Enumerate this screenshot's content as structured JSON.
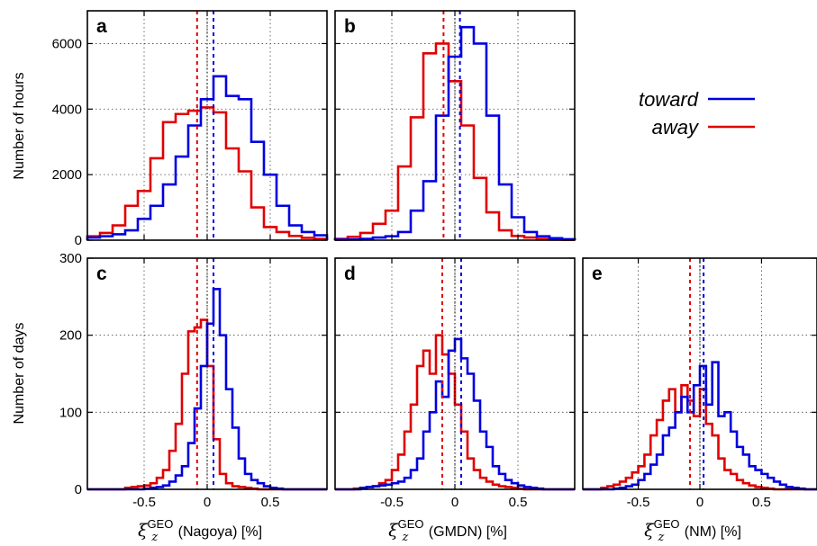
{
  "legend": {
    "toward_label": "toward",
    "away_label": "away",
    "toward_color": "#0000e0",
    "away_color": "#e00000"
  },
  "ylabels": {
    "top": "Number of hours",
    "bottom": "Number of days"
  },
  "xlabel_symbol": "ξ",
  "xlabel_superscript": "GEO",
  "xlabel_subscript": "z",
  "chart_data": [
    {
      "type": "bar",
      "panel": "a",
      "bin_edges": [
        -0.95,
        -0.85,
        -0.75,
        -0.65,
        -0.55,
        -0.45,
        -0.35,
        -0.25,
        -0.15,
        -0.05,
        0.05,
        0.15,
        0.25,
        0.35,
        0.45,
        0.55,
        0.65,
        0.75,
        0.85,
        0.95
      ],
      "series": [
        {
          "name": "toward",
          "values": [
            80,
            120,
            180,
            300,
            650,
            1050,
            1700,
            2550,
            3500,
            4300,
            5000,
            4400,
            4300,
            3000,
            2000,
            1050,
            450,
            250,
            150
          ]
        },
        {
          "name": "away",
          "values": [
            120,
            220,
            450,
            1050,
            1500,
            2500,
            3600,
            3850,
            3950,
            4050,
            3900,
            2800,
            2100,
            1000,
            400,
            250,
            130,
            70,
            40
          ]
        }
      ],
      "means": {
        "toward": 0.05,
        "away": -0.08
      },
      "ylim": [
        0,
        7000
      ],
      "yticks": [
        0,
        2000,
        4000,
        6000
      ],
      "xlim": [
        -0.95,
        0.95
      ],
      "xticks": [
        -0.5,
        0,
        0.5
      ]
    },
    {
      "type": "bar",
      "panel": "b",
      "bin_edges": [
        -0.95,
        -0.85,
        -0.75,
        -0.65,
        -0.55,
        -0.45,
        -0.35,
        -0.25,
        -0.15,
        -0.05,
        0.05,
        0.15,
        0.25,
        0.35,
        0.45,
        0.55,
        0.65,
        0.75,
        0.85,
        0.95
      ],
      "series": [
        {
          "name": "toward",
          "values": [
            15,
            20,
            40,
            80,
            120,
            250,
            900,
            1800,
            3800,
            5600,
            6500,
            6000,
            3800,
            1700,
            700,
            250,
            120,
            60,
            30
          ]
        },
        {
          "name": "away",
          "values": [
            40,
            100,
            220,
            500,
            900,
            2250,
            3750,
            5700,
            6000,
            4850,
            3500,
            1900,
            850,
            300,
            130,
            80,
            40,
            20,
            10
          ]
        }
      ],
      "means": {
        "toward": 0.04,
        "away": -0.09
      },
      "ylim": [
        0,
        7000
      ],
      "yticks": [
        0,
        2000,
        4000,
        6000
      ],
      "xlim": [
        -0.95,
        0.95
      ],
      "xticks": [
        -0.5,
        0,
        0.5
      ]
    },
    {
      "type": "bar",
      "panel": "c",
      "bin_edges": [
        -0.95,
        -0.9,
        -0.85,
        -0.8,
        -0.75,
        -0.7,
        -0.65,
        -0.6,
        -0.55,
        -0.5,
        -0.45,
        -0.4,
        -0.35,
        -0.3,
        -0.25,
        -0.2,
        -0.15,
        -0.1,
        -0.05,
        0,
        0.05,
        0.1,
        0.15,
        0.2,
        0.25,
        0.3,
        0.35,
        0.4,
        0.45,
        0.5,
        0.55,
        0.6,
        0.65,
        0.7,
        0.75,
        0.8,
        0.85,
        0.9,
        0.95
      ],
      "series": [
        {
          "name": "toward",
          "values": [
            0,
            0,
            0,
            0,
            0,
            0,
            0,
            0,
            0,
            1,
            2,
            3,
            5,
            10,
            18,
            30,
            60,
            105,
            160,
            215,
            260,
            200,
            130,
            80,
            40,
            20,
            12,
            8,
            4,
            2,
            1,
            0,
            0,
            0,
            0,
            0,
            0,
            0
          ]
        },
        {
          "name": "away",
          "values": [
            0,
            0,
            0,
            0,
            0,
            0,
            2,
            3,
            4,
            5,
            8,
            15,
            25,
            50,
            85,
            150,
            205,
            210,
            220,
            160,
            65,
            20,
            8,
            4,
            3,
            2,
            1,
            0,
            0,
            0,
            0,
            0,
            0,
            0,
            0,
            0,
            0,
            0
          ]
        }
      ],
      "means": {
        "toward": 0.05,
        "away": -0.08
      },
      "ylim": [
        0,
        300
      ],
      "yticks": [
        0,
        100,
        200,
        300
      ],
      "xlim": [
        -0.95,
        0.95
      ],
      "xticks": [
        -0.5,
        0,
        0.5
      ]
    },
    {
      "type": "bar",
      "panel": "d",
      "bin_edges": [
        -0.95,
        -0.9,
        -0.85,
        -0.8,
        -0.75,
        -0.7,
        -0.65,
        -0.6,
        -0.55,
        -0.5,
        -0.45,
        -0.4,
        -0.35,
        -0.3,
        -0.25,
        -0.2,
        -0.15,
        -0.1,
        -0.05,
        0,
        0.05,
        0.1,
        0.15,
        0.2,
        0.25,
        0.3,
        0.35,
        0.4,
        0.45,
        0.5,
        0.55,
        0.6,
        0.65,
        0.7,
        0.75,
        0.8,
        0.85,
        0.9,
        0.95
      ],
      "series": [
        {
          "name": "toward",
          "values": [
            0,
            0,
            0,
            0,
            2,
            3,
            4,
            5,
            6,
            8,
            10,
            15,
            25,
            40,
            75,
            100,
            140,
            120,
            180,
            195,
            170,
            150,
            115,
            75,
            55,
            30,
            20,
            12,
            8,
            5,
            3,
            2,
            1,
            0,
            0,
            0,
            0,
            0
          ]
        },
        {
          "name": "away",
          "values": [
            0,
            0,
            0,
            1,
            2,
            3,
            4,
            8,
            12,
            25,
            45,
            75,
            110,
            160,
            180,
            150,
            200,
            175,
            150,
            110,
            75,
            40,
            25,
            15,
            10,
            6,
            4,
            3,
            2,
            1,
            0,
            0,
            0,
            0,
            0,
            0,
            0,
            0
          ]
        }
      ],
      "means": {
        "toward": 0.05,
        "away": -0.1
      },
      "ylim": [
        0,
        300
      ],
      "yticks": [
        0,
        100,
        200,
        300
      ],
      "xlim": [
        -0.95,
        0.95
      ],
      "xticks": [
        -0.5,
        0,
        0.5
      ]
    },
    {
      "type": "bar",
      "panel": "e",
      "bin_edges": [
        -0.95,
        -0.9,
        -0.85,
        -0.8,
        -0.75,
        -0.7,
        -0.65,
        -0.6,
        -0.55,
        -0.5,
        -0.45,
        -0.4,
        -0.35,
        -0.3,
        -0.25,
        -0.2,
        -0.15,
        -0.1,
        -0.05,
        0,
        0.05,
        0.1,
        0.15,
        0.2,
        0.25,
        0.3,
        0.35,
        0.4,
        0.45,
        0.5,
        0.55,
        0.6,
        0.65,
        0.7,
        0.75,
        0.8,
        0.85,
        0.9,
        0.95
      ],
      "series": [
        {
          "name": "toward",
          "values": [
            0,
            0,
            0,
            0,
            0,
            1,
            2,
            4,
            6,
            12,
            20,
            32,
            45,
            70,
            80,
            100,
            120,
            100,
            135,
            160,
            110,
            165,
            95,
            100,
            75,
            55,
            45,
            30,
            25,
            20,
            15,
            10,
            6,
            3,
            2,
            1,
            0,
            0
          ]
        },
        {
          "name": "away",
          "values": [
            0,
            0,
            0,
            2,
            4,
            6,
            10,
            15,
            22,
            30,
            45,
            70,
            90,
            115,
            130,
            100,
            135,
            115,
            95,
            130,
            85,
            70,
            40,
            25,
            20,
            12,
            8,
            5,
            3,
            2,
            1,
            0,
            0,
            0,
            0,
            0,
            0,
            0
          ]
        }
      ],
      "means": {
        "toward": 0.03,
        "away": -0.08
      },
      "ylim": [
        0,
        300
      ],
      "yticks": [
        0,
        100,
        200,
        300
      ],
      "xlim": [
        -0.95,
        0.95
      ],
      "xticks": [
        -0.5,
        0,
        0.5
      ]
    }
  ],
  "panels": {
    "a": {
      "letter": "a",
      "x_name": "",
      "ytick_labels": [
        "0",
        "2000",
        "4000",
        "6000"
      ],
      "xtick_labels": []
    },
    "b": {
      "letter": "b",
      "x_name": "",
      "ytick_labels": [],
      "xtick_labels": []
    },
    "c": {
      "letter": "c",
      "x_name": "(Nagoya) [%]",
      "ytick_labels": [
        "0",
        "100",
        "200",
        "300"
      ],
      "xtick_labels": [
        "-0.5",
        "0",
        "0.5"
      ]
    },
    "d": {
      "letter": "d",
      "x_name": "(GMDN) [%]",
      "ytick_labels": [],
      "xtick_labels": [
        "-0.5",
        "0",
        "0.5"
      ]
    },
    "e": {
      "letter": "e",
      "x_name": "(NM) [%]",
      "ytick_labels": [],
      "xtick_labels": [
        "-0.5",
        "0",
        "0.5"
      ]
    }
  }
}
